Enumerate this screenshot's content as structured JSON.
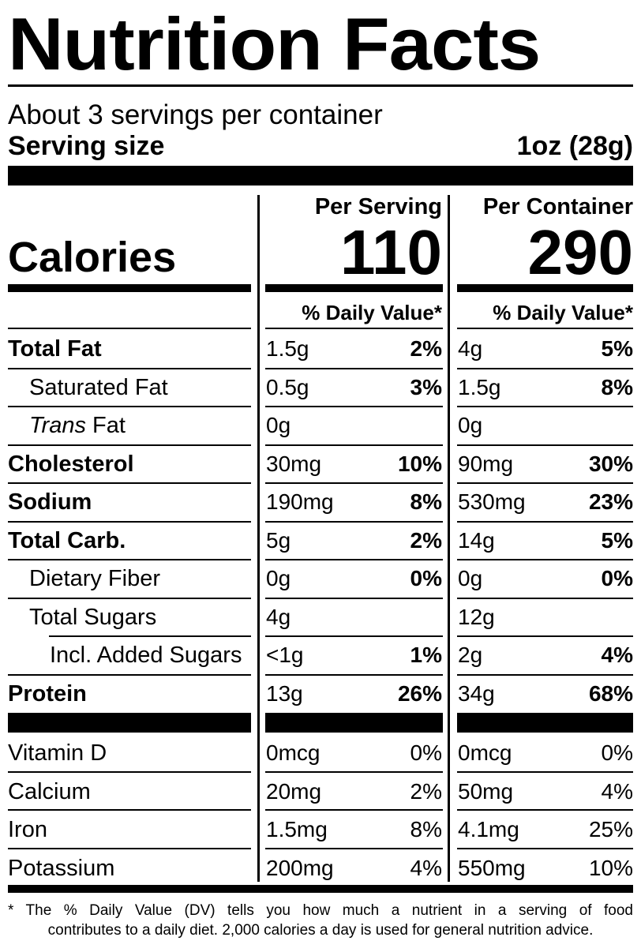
{
  "title": "Nutrition Facts",
  "servings_per_container": "About 3 servings per container",
  "serving_size_label": "Serving size",
  "serving_size_value": "1oz (28g)",
  "calories_label": "Calories",
  "columns": [
    {
      "header": "Per Serving",
      "calories": "110",
      "dv_header": "% Daily Value*"
    },
    {
      "header": "Per Container",
      "calories": "290",
      "dv_header": "% Daily Value*"
    }
  ],
  "nutrients": [
    {
      "label": "Total Fat",
      "bold": true,
      "indent": 0,
      "serving_amount": "1.5g",
      "serving_dv": "2%",
      "container_amount": "4g",
      "container_dv": "5%"
    },
    {
      "label": "Saturated Fat",
      "bold": false,
      "indent": 1,
      "serving_amount": "0.5g",
      "serving_dv": "3%",
      "container_amount": "1.5g",
      "container_dv": "8%"
    },
    {
      "label_italic": "Trans",
      "label": " Fat",
      "bold": false,
      "indent": 1,
      "serving_amount": "0g",
      "serving_dv": "",
      "container_amount": "0g",
      "container_dv": ""
    },
    {
      "label": "Cholesterol",
      "bold": true,
      "indent": 0,
      "serving_amount": "30mg",
      "serving_dv": "10%",
      "container_amount": "90mg",
      "container_dv": "30%"
    },
    {
      "label": "Sodium",
      "bold": true,
      "indent": 0,
      "serving_amount": "190mg",
      "serving_dv": "8%",
      "container_amount": "530mg",
      "container_dv": "23%"
    },
    {
      "label": "Total Carb.",
      "bold": true,
      "indent": 0,
      "serving_amount": "5g",
      "serving_dv": "2%",
      "container_amount": "14g",
      "container_dv": "5%"
    },
    {
      "label": "Dietary Fiber",
      "bold": false,
      "indent": 1,
      "serving_amount": "0g",
      "serving_dv": "0%",
      "container_amount": "0g",
      "container_dv": "0%"
    },
    {
      "label": "Total Sugars",
      "bold": false,
      "indent": 1,
      "serving_amount": "4g",
      "serving_dv": "",
      "container_amount": "12g",
      "container_dv": ""
    },
    {
      "label": "Incl. Added Sugars",
      "bold": false,
      "indent": 2,
      "serving_amount": "<1g",
      "serving_dv": "1%",
      "container_amount": "2g",
      "container_dv": "4%"
    },
    {
      "label": "Protein",
      "bold": true,
      "indent": 0,
      "serving_amount": "13g",
      "serving_dv": "26%",
      "container_amount": "34g",
      "container_dv": "68%"
    }
  ],
  "vitamins": [
    {
      "label": "Vitamin D",
      "serving_amount": "0mcg",
      "serving_dv": "0%",
      "container_amount": "0mcg",
      "container_dv": "0%"
    },
    {
      "label": "Calcium",
      "serving_amount": "20mg",
      "serving_dv": "2%",
      "container_amount": "50mg",
      "container_dv": "4%"
    },
    {
      "label": "Iron",
      "serving_amount": "1.5mg",
      "serving_dv": "8%",
      "container_amount": "4.1mg",
      "container_dv": "25%"
    },
    {
      "label": "Potassium",
      "serving_amount": "200mg",
      "serving_dv": "4%",
      "container_amount": "550mg",
      "container_dv": "10%"
    }
  ],
  "footnote_line1": "* The % Daily Value (DV) tells you how much a nutrient in a serving of food",
  "footnote_line2": "contributes to a daily diet. 2,000 calories a day is used for general nutrition advice."
}
